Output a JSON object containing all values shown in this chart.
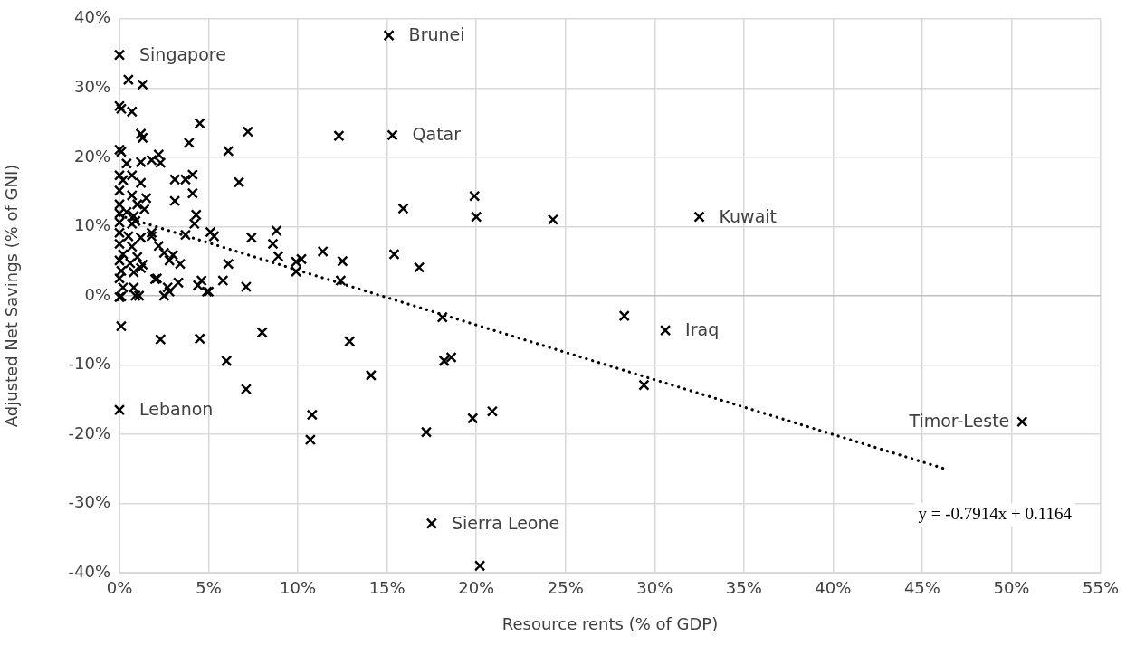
{
  "chart_data": {
    "type": "scatter",
    "xlabel": "Resource rents (% of GDP)",
    "ylabel": "Adjusted Net Savings (% of GNI)",
    "xlim": [
      0,
      55
    ],
    "ylim": [
      -40,
      40
    ],
    "xticks": [
      {
        "value": 0,
        "label": "0%"
      },
      {
        "value": 5,
        "label": "5%"
      },
      {
        "value": 10,
        "label": "10%"
      },
      {
        "value": 15,
        "label": "15%"
      },
      {
        "value": 20,
        "label": "20%"
      },
      {
        "value": 25,
        "label": "25%"
      },
      {
        "value": 30,
        "label": "30%"
      },
      {
        "value": 35,
        "label": "35%"
      },
      {
        "value": 40,
        "label": "40%"
      },
      {
        "value": 45,
        "label": "45%"
      },
      {
        "value": 50,
        "label": "50%"
      },
      {
        "value": 55,
        "label": "55%"
      }
    ],
    "yticks": [
      {
        "value": -40,
        "label": "-40%"
      },
      {
        "value": -30,
        "label": "-30%"
      },
      {
        "value": -20,
        "label": "-20%"
      },
      {
        "value": -10,
        "label": "-10%"
      },
      {
        "value": 0,
        "label": "0%"
      },
      {
        "value": 10,
        "label": "10%"
      },
      {
        "value": 20,
        "label": "20%"
      },
      {
        "value": 30,
        "label": "30%"
      },
      {
        "value": 40,
        "label": "40%"
      }
    ],
    "grid": true,
    "legend": false,
    "marker": "cross",
    "series": [
      {
        "color": "#000000",
        "x": [
          0,
          0.5,
          1.3,
          0,
          0.1,
          0.7,
          4.5,
          7.2,
          1.2,
          1.3,
          3.9,
          6.1,
          0,
          0.1,
          2.2,
          6.7,
          2.3,
          0.4,
          1.2,
          1.8,
          0,
          0.2,
          0.7,
          1.2,
          3.1,
          3.7,
          4.1,
          4.1,
          0,
          0.7,
          1.5,
          3.1,
          0,
          1.0,
          1.4,
          4.3,
          0,
          0.4,
          0.8,
          0.9,
          0,
          0.7,
          4.2,
          5.1,
          1.8,
          0,
          0.5,
          1.2,
          1.8,
          3.7,
          5.3,
          7.4,
          2.2,
          0,
          0.7,
          0.2,
          1.0,
          2.5,
          3.0,
          0,
          0.6,
          1.3,
          2.8,
          3.4,
          6.1,
          0.1,
          0.8,
          1.2,
          0,
          2.1,
          2.0,
          5.8,
          4.6,
          4.4,
          3.3,
          7.1,
          0.2,
          0.8,
          2.7,
          4.9,
          2.8,
          0.1,
          0.9,
          2.5,
          0,
          1.1,
          5.0,
          0.1,
          2.3,
          4.5,
          8.0,
          6.0,
          7.1,
          0,
          15.1,
          12.3,
          15.3,
          15.9,
          19.9,
          20.0,
          24.3,
          8.8,
          8.6,
          8.9,
          10.2,
          9.9,
          9.9,
          11.4,
          12.5,
          12.4,
          15.4,
          16.8,
          12.9,
          18.1,
          18.2,
          18.6,
          14.1,
          10.8,
          10.7,
          17.2,
          19.8,
          20.9,
          17.5,
          20.2,
          32.5,
          28.3,
          30.6,
          29.4,
          50.6
        ],
        "values": [
          34.8,
          31.2,
          30.5,
          27.4,
          27.0,
          26.6,
          24.9,
          23.7,
          23.4,
          22.8,
          22.1,
          20.9,
          21.1,
          20.8,
          20.4,
          16.4,
          19.2,
          19.1,
          19.3,
          19.6,
          17.4,
          16.7,
          17.4,
          16.3,
          16.8,
          16.8,
          17.5,
          14.8,
          15.2,
          14.5,
          14.1,
          13.7,
          13.2,
          13.2,
          12.5,
          11.7,
          11.9,
          12.1,
          11.5,
          10.8,
          10.6,
          10.4,
          10.4,
          9.2,
          9.1,
          9.1,
          8.6,
          8.4,
          8.6,
          8.8,
          8.6,
          8.4,
          7.2,
          7.5,
          7.1,
          6.0,
          5.6,
          6.2,
          5.9,
          5.1,
          4.7,
          4.5,
          5.1,
          4.6,
          4.6,
          3.6,
          3.4,
          4.0,
          2.5,
          2.5,
          2.4,
          2.2,
          2.2,
          1.5,
          1.9,
          1.3,
          1.2,
          1.2,
          1.2,
          0.6,
          0.6,
          -0.1,
          0.0,
          0.0,
          -0.2,
          0.0,
          0.6,
          -4.4,
          -6.3,
          -6.2,
          -5.3,
          -9.4,
          -13.5,
          -16.5,
          37.6,
          23.1,
          23.2,
          12.6,
          14.4,
          11.4,
          11.0,
          9.4,
          7.5,
          5.7,
          5.3,
          4.9,
          3.5,
          6.4,
          5.0,
          2.2,
          6.0,
          4.1,
          -6.6,
          -3.1,
          -9.4,
          -8.9,
          -11.5,
          -17.2,
          -20.8,
          -19.7,
          -17.7,
          -16.7,
          -32.9,
          -39.0,
          11.4,
          -2.9,
          -5.0,
          -12.9,
          -18.2
        ]
      },
      {
        "type": "line",
        "color": "#000000",
        "line_style": "dotted",
        "marker": "none",
        "x": [
          0,
          46.4
        ],
        "values": [
          11.6,
          -25.1
        ]
      }
    ],
    "annotations": [
      {
        "text": "Singapore",
        "x": 0,
        "y": 34.8
      },
      {
        "text": "Brunei",
        "x": 15.1,
        "y": 37.6
      },
      {
        "text": "Qatar",
        "x": 15.3,
        "y": 23.2
      },
      {
        "text": "Kuwait",
        "x": 32.5,
        "y": 11.4
      },
      {
        "text": "Iraq",
        "x": 30.6,
        "y": -5.0
      },
      {
        "text": "Timor-Leste",
        "x": 50.6,
        "y": -18.2
      },
      {
        "text": "Sierra Leone",
        "x": 17.5,
        "y": -32.9
      },
      {
        "text": "Lebanon",
        "x": 0,
        "y": -16.5
      },
      "y = -0.7914x + 0.1164"
    ]
  }
}
